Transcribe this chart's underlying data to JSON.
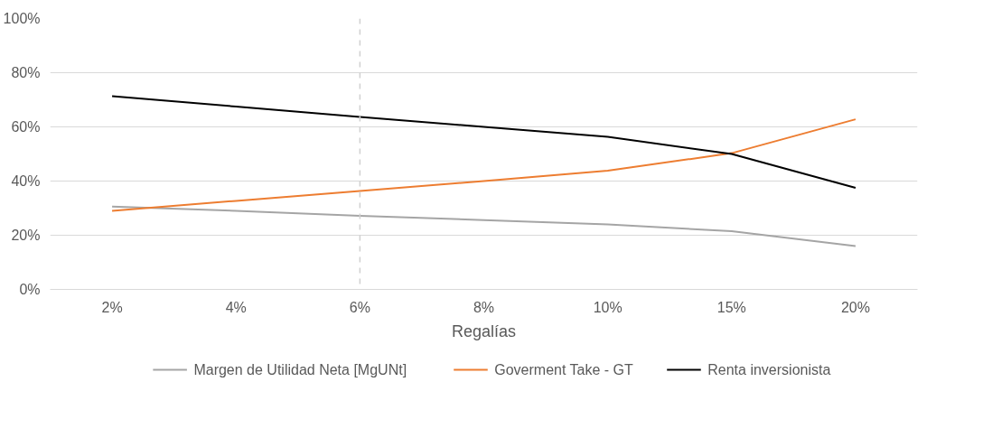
{
  "chart_data": {
    "type": "line",
    "xlabel": "Regalías",
    "categories": [
      "2%",
      "4%",
      "6%",
      "8%",
      "10%",
      "15%",
      "20%"
    ],
    "series": [
      {
        "name": "Margen de Utilidad Neta [MgUNt]",
        "color": "#a5a5a5",
        "values": [
          30.6,
          29,
          27.2,
          25.6,
          24,
          21.5,
          16
        ]
      },
      {
        "name": "Goverment Take - GT",
        "color": "#ed7d31",
        "values": [
          29,
          32.7,
          36.3,
          40,
          43.8,
          50.3,
          62.8
        ]
      },
      {
        "name": "Renta inversionista",
        "color": "#000000",
        "values": [
          71.3,
          67.5,
          63.7,
          60,
          56.3,
          50,
          37.5
        ]
      }
    ],
    "ylim": [
      0,
      100
    ],
    "yticks": [
      {
        "value": 0,
        "label": "0%"
      },
      {
        "value": 20,
        "label": "20%"
      },
      {
        "value": 40,
        "label": "40%"
      },
      {
        "value": 60,
        "label": "60%"
      },
      {
        "value": 80,
        "label": "80%"
      },
      {
        "value": 100,
        "label": "100%"
      }
    ],
    "ref_lines": [
      {
        "axis": "x",
        "value": "6%",
        "color": "#d0d0d0",
        "line_style": "dashed"
      }
    ],
    "grid": "y",
    "legend": "bottom",
    "marker": "none",
    "line_style": "solid"
  }
}
